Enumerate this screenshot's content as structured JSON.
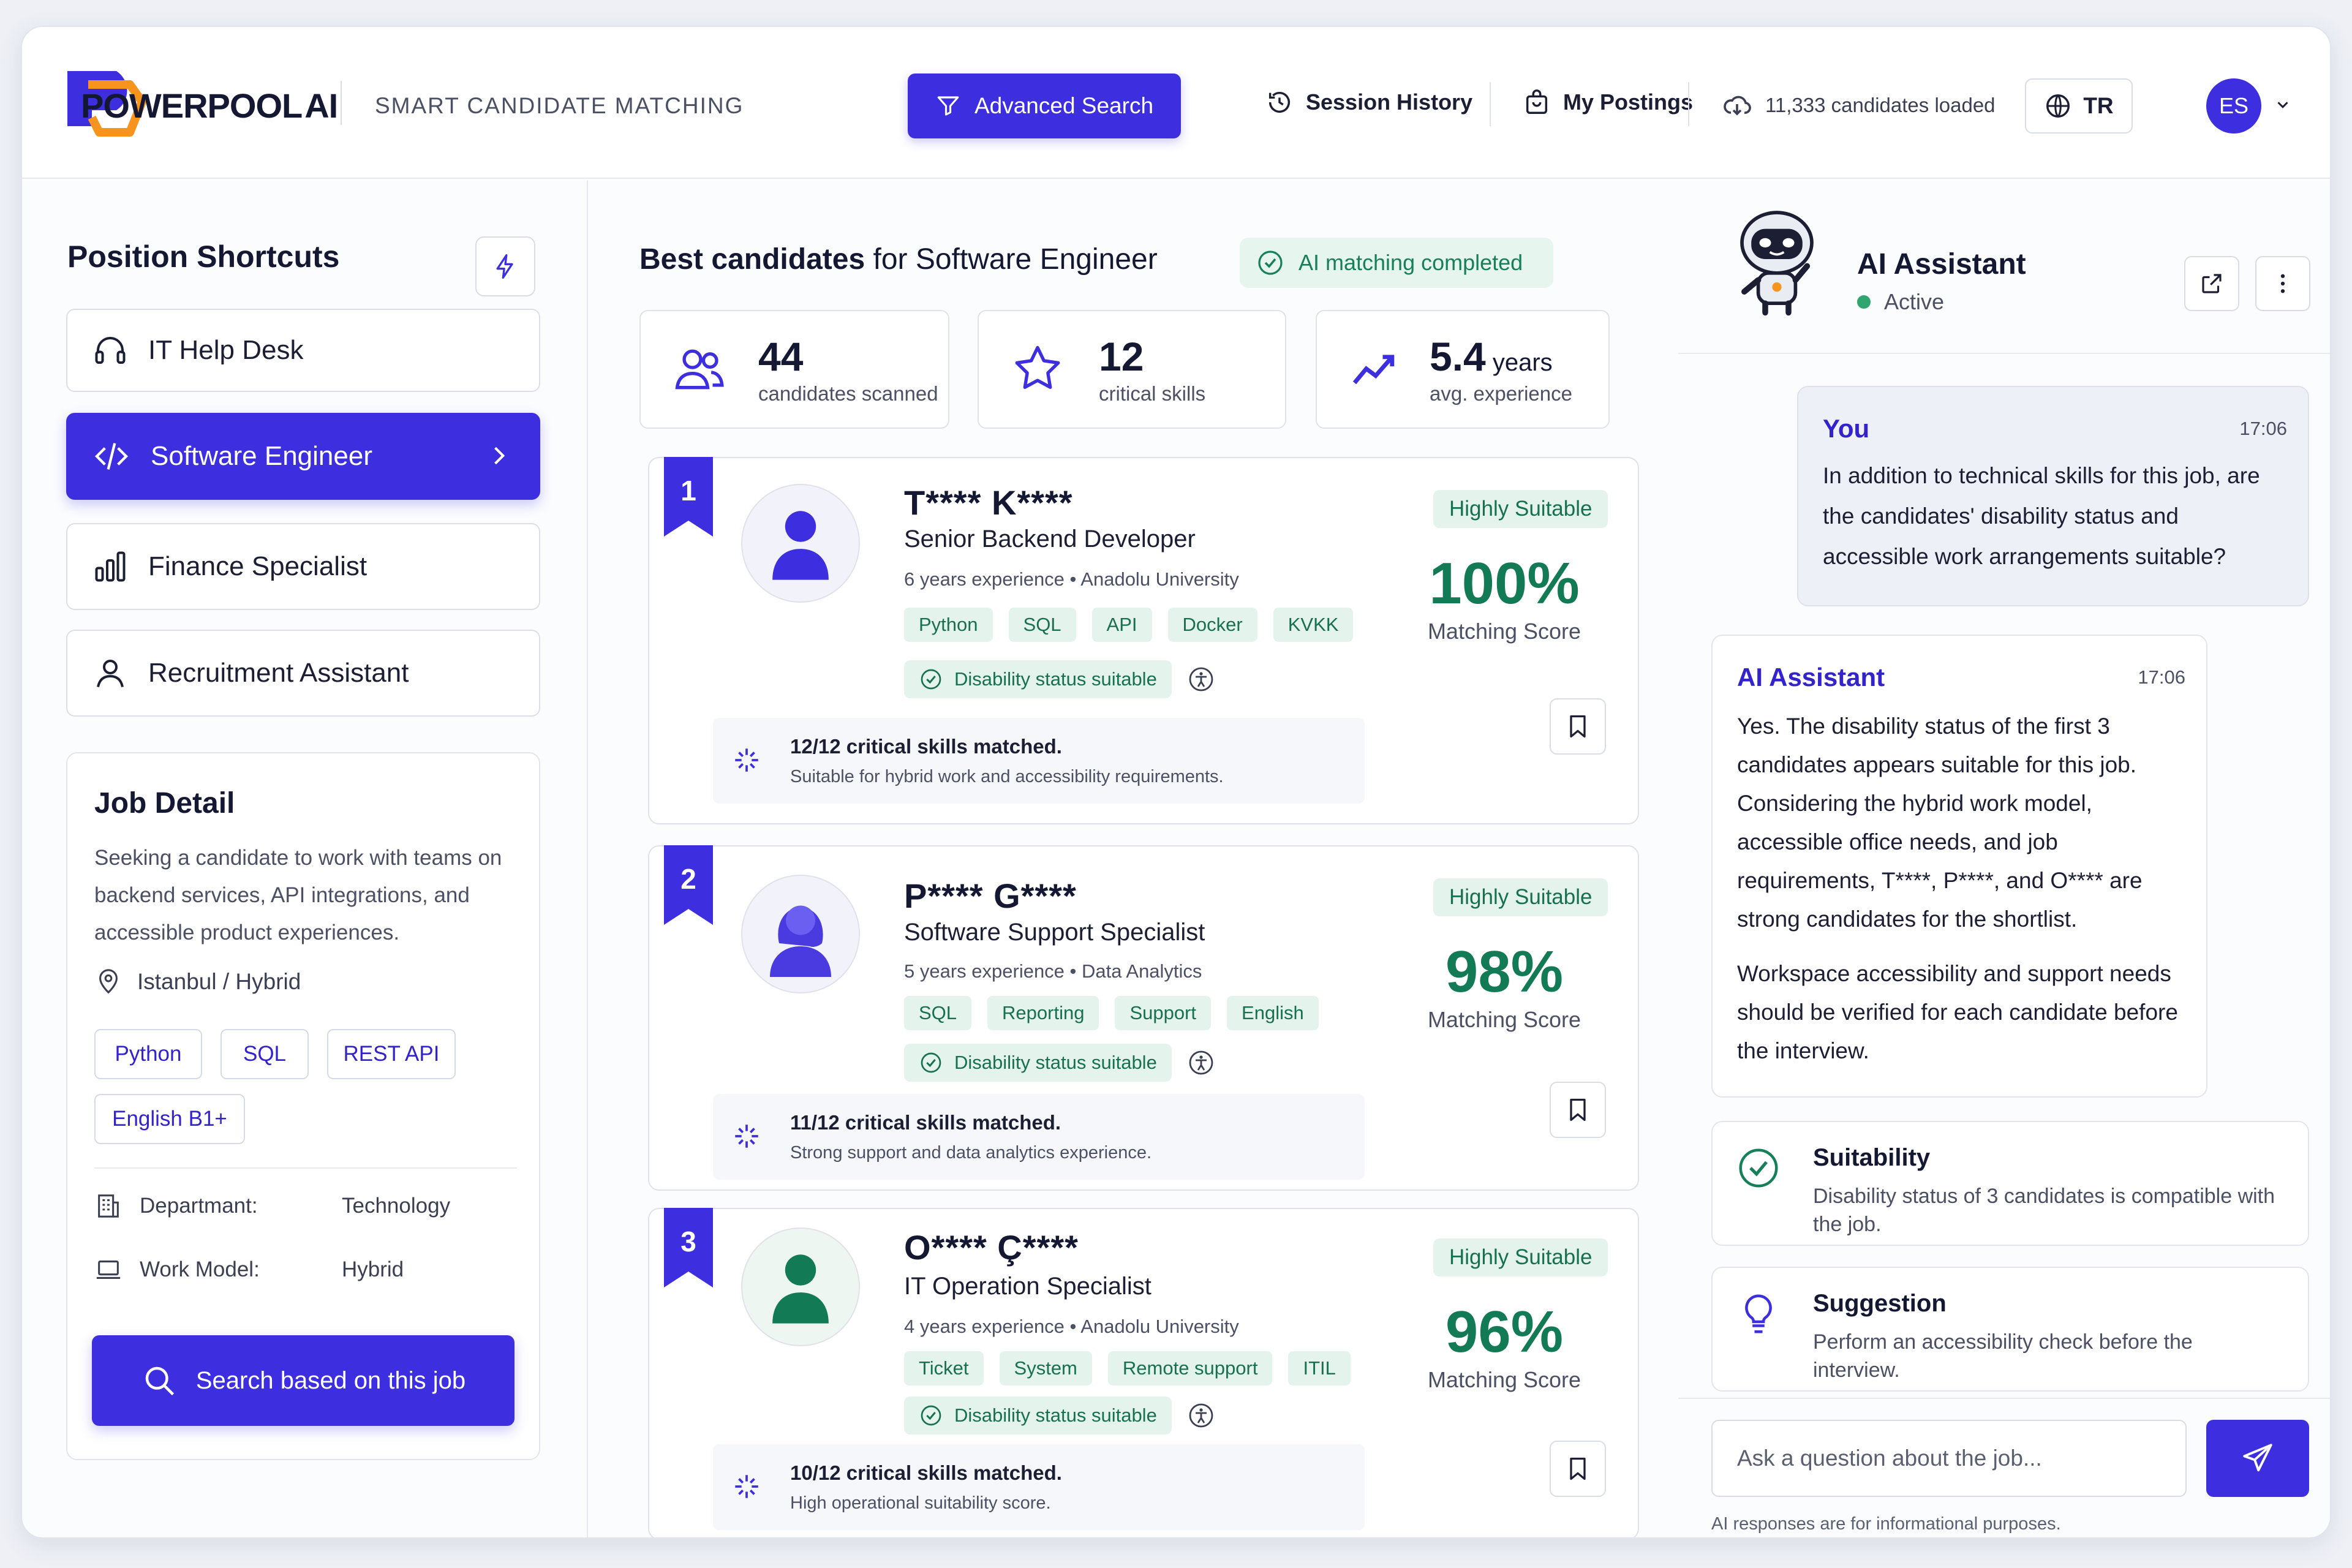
{
  "header": {
    "logo_text": "POWERPOOL",
    "logo_suffix": "AI",
    "tagline": "SMART CANDIDATE MATCHING",
    "advanced_search": "Advanced Search",
    "session_history": "Session History",
    "my_postings": "My Postings",
    "candidates_loaded": "11,333 candidates loaded",
    "language": "TR",
    "user_initials": "ES"
  },
  "sidebar": {
    "title": "Position Shortcuts",
    "shortcuts": [
      {
        "label": "IT Help Desk",
        "icon": "headset-icon"
      },
      {
        "label": "Software Engineer",
        "icon": "code-icon",
        "active": true
      },
      {
        "label": "Finance Specialist",
        "icon": "bar-chart-icon"
      },
      {
        "label": "Recruitment Assistant",
        "icon": "user-icon"
      }
    ],
    "job_detail": {
      "title": "Job Detail",
      "description": "Seeking a candidate to work with teams on backend services, API integrations, and accessible product experiences.",
      "location": "Istanbul / Hybrid",
      "tags": [
        "Python",
        "SQL",
        "REST API",
        "English B1+"
      ],
      "department_label": "Departmant:",
      "department_value": "Technology",
      "work_model_label": "Work Model:",
      "work_model_value": "Hybrid",
      "search_button": "Search based on this job"
    }
  },
  "main": {
    "title_bold": "Best candidates",
    "title_rest": " for Software Engineer",
    "status": "AI matching completed",
    "stats": [
      {
        "value": "44",
        "unit": "",
        "label": "candidates scanned",
        "icon": "users-icon"
      },
      {
        "value": "12",
        "unit": "",
        "label": "critical skills",
        "icon": "star-icon"
      },
      {
        "value": "5.4",
        "unit": " years",
        "label": "avg. experience",
        "icon": "trend-icon"
      }
    ],
    "candidates": [
      {
        "rank": "1",
        "name": "T**** K****",
        "role": "Senior Backend Developer",
        "meta": "6 years experience  •  Anadolu University",
        "skills": [
          "Python",
          "SQL",
          "API",
          "Docker",
          "KVKK"
        ],
        "disability": "Disability status suitable",
        "badge": "Highly Suitable",
        "score": "100%",
        "score_label": "Matching Score",
        "match_title": "12/12 critical skills matched.",
        "match_desc": "Suitable for hybrid work and accessibility requirements."
      },
      {
        "rank": "2",
        "name": "P**** G****",
        "role": "Software Support Specialist",
        "meta": "5 years experience  •  Data Analytics",
        "skills": [
          "SQL",
          "Reporting",
          "Support",
          "English"
        ],
        "disability": "Disability status suitable",
        "badge": "Highly Suitable",
        "score": "98%",
        "score_label": "Matching Score",
        "match_title": "11/12 critical skills matched.",
        "match_desc": "Strong support and data analytics experience."
      },
      {
        "rank": "3",
        "name": "O**** Ç****",
        "role": "IT Operation Specialist",
        "meta": "4 years experience  •  Anadolu University",
        "skills": [
          "Ticket",
          "System",
          "Remote support",
          "ITIL"
        ],
        "disability": "Disability status suitable",
        "badge": "Highly Suitable",
        "score": "96%",
        "score_label": "Matching Score",
        "match_title": "10/12 critical skills matched.",
        "match_desc": "High operational suitability score."
      }
    ]
  },
  "assistant": {
    "title": "AI Assistant",
    "status": "Active",
    "messages": {
      "you_name": "You",
      "you_time": "17:06",
      "you_text": "In addition to technical skills for this job, are the candidates' disability status and accessible work arrangements suitable?",
      "ai_name": "AI Assistant",
      "ai_time": "17:06",
      "ai_text_1": "Yes.  The disability status of the first 3 candidates appears suitable for this job. Considering the hybrid work model, accessible office needs, and job requirements, T****, P****, and O**** are strong candidates for the shortlist.",
      "ai_text_2": "Workspace accessibility and support needs should be verified for each candidate before the interview."
    },
    "cards": [
      {
        "title": "Suitability",
        "desc": "Disability status of 3 candidates is compatible with the job."
      },
      {
        "title": "Suggestion",
        "desc": "Perform an accessibility check before the interview."
      }
    ],
    "input_placeholder": "Ask a question about the job...",
    "disclaimer": "AI responses are for informational purposes."
  },
  "colors": {
    "accent": "#3d2fe0",
    "success": "#137a56",
    "success_bg": "#e4f4ec"
  }
}
